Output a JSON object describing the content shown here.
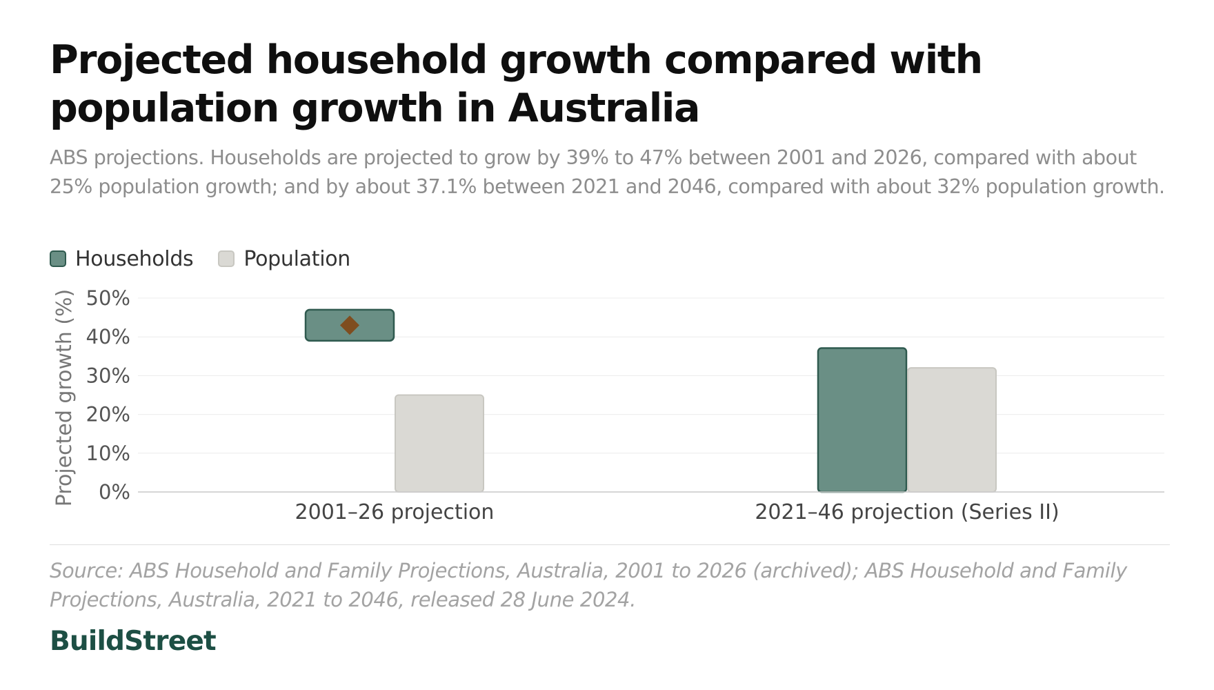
{
  "header": {
    "title": "Projected household growth compared with population growth in Australia",
    "subtitle": "ABS projections. Households are projected to grow by 39% to 47% between 2001 and 2026, compared with about 25% population growth; and by about 37.1% between 2021 and 2046, compared with about 32% population growth."
  },
  "legend": {
    "households": "Households",
    "population": "Population"
  },
  "chart_data": {
    "type": "bar",
    "title": "Projected household growth compared with population growth in Australia",
    "xlabel": "",
    "ylabel": "Projected growth (%)",
    "ylim": [
      0,
      50
    ],
    "yticks": [
      0,
      10,
      20,
      30,
      40,
      50
    ],
    "ytick_labels": [
      "0%",
      "10%",
      "20%",
      "30%",
      "40%",
      "50%"
    ],
    "grid": true,
    "legend_position": "top-left",
    "categories": [
      "2001–26 projection",
      "2021–46 projection (Series II)"
    ],
    "series": [
      {
        "name": "Households",
        "color": "#6a8f85",
        "stroke": "#2f5a4f",
        "values": [
          {
            "low": 39,
            "high": 47,
            "midpoint": 43
          },
          {
            "value": 37.1
          }
        ]
      },
      {
        "name": "Population",
        "color": "#dad9d4",
        "stroke": "#c8c7c1",
        "values": [
          {
            "value": 25
          },
          {
            "value": 32
          }
        ]
      }
    ],
    "midpoint_marker_color": "#7f4d1f"
  },
  "footer": {
    "source": "Source: ABS Household and Family Projections, Australia, 2001 to 2026 (archived); ABS Household and Family Projections, Australia, 2021 to 2046, released 28 June 2024.",
    "brand": "BuildStreet"
  }
}
